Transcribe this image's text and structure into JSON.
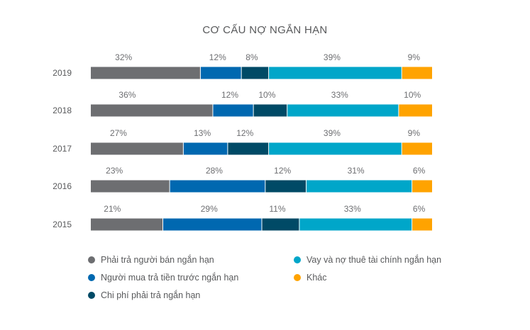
{
  "chart_data": {
    "type": "bar",
    "orientation": "horizontal",
    "stacked": true,
    "normalized_100_percent": true,
    "title": "CƠ CẤU NỢ NGẮN HẠN",
    "categories": [
      "2019",
      "2018",
      "2017",
      "2016",
      "2015"
    ],
    "series": [
      {
        "name": "Phải trả người bán ngắn hạn",
        "color": "#6d6e71",
        "values": [
          32,
          36,
          27,
          23,
          21
        ]
      },
      {
        "name": "Người mua trả tiền trước ngắn hạn",
        "color": "#0068b0",
        "values": [
          12,
          12,
          13,
          28,
          29
        ]
      },
      {
        "name": "Chi phí phải trả ngắn hạn",
        "color": "#004a66",
        "values": [
          8,
          10,
          12,
          12,
          11
        ]
      },
      {
        "name": "Vay và nợ thuê tài chính ngắn hạn",
        "color": "#00a6c9",
        "values": [
          39,
          33,
          39,
          31,
          33
        ]
      },
      {
        "name": "Khác",
        "color": "#ffa300",
        "values": [
          9,
          10,
          9,
          6,
          6
        ]
      }
    ],
    "value_suffix": "%",
    "data_labels": "above",
    "grid": false,
    "legend_position": "bottom"
  }
}
